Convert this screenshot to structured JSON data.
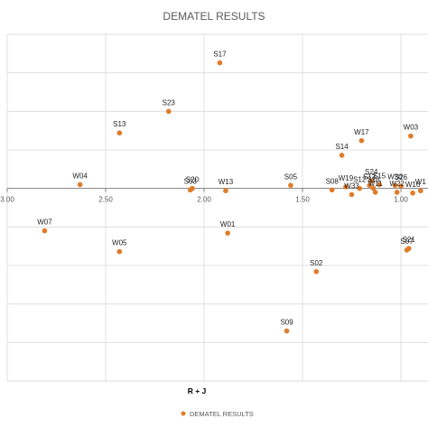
{
  "chart_data": {
    "type": "scatter",
    "title": "DEMATEL RESULTS",
    "xlabel": "R + J",
    "ylabel": "",
    "x_reversed": true,
    "xlim": [
      0.9,
      3.0
    ],
    "ylim": [
      -2.5,
      2.0
    ],
    "x_ticks": [
      "3.00",
      "2.50",
      "2.00",
      "1.50",
      "1.00"
    ],
    "grid": true,
    "legend_position": "bottom",
    "series": [
      {
        "name": "DEMATEL RESULTS",
        "color": "#E07B29",
        "points": [
          {
            "label": "S17",
            "x": 1.92,
            "y": 1.63
          },
          {
            "label": "S23",
            "x": 2.18,
            "y": 1.0
          },
          {
            "label": "S13",
            "x": 2.43,
            "y": 0.72
          },
          {
            "label": "W17",
            "x": 1.2,
            "y": 0.62
          },
          {
            "label": "W03",
            "x": 0.95,
            "y": 0.68
          },
          {
            "label": "S14",
            "x": 1.3,
            "y": 0.43
          },
          {
            "label": "W04",
            "x": 2.63,
            "y": 0.05
          },
          {
            "label": "S20",
            "x": 2.06,
            "y": 0.0
          },
          {
            "label": "S03",
            "x": 2.07,
            "y": -0.02
          },
          {
            "label": "W13",
            "x": 1.89,
            "y": -0.03
          },
          {
            "label": "S05",
            "x": 1.56,
            "y": 0.04
          },
          {
            "label": "S08",
            "x": 1.35,
            "y": -0.02
          },
          {
            "label": "W19",
            "x": 1.28,
            "y": 0.02
          },
          {
            "label": "W33",
            "x": 1.25,
            "y": -0.08
          },
          {
            "label": "S12",
            "x": 1.21,
            "y": 0.0
          },
          {
            "label": "S24",
            "x": 1.15,
            "y": 0.1
          },
          {
            "label": "S13",
            "x": 1.16,
            "y": 0.04
          },
          {
            "label": "S16",
            "x": 1.14,
            "y": 0.0
          },
          {
            "label": "S15",
            "x": 1.11,
            "y": 0.05
          },
          {
            "label": "W11",
            "x": 1.13,
            "y": -0.05
          },
          {
            "label": "W30",
            "x": 1.03,
            "y": 0.04
          },
          {
            "label": "S26",
            "x": 1.0,
            "y": 0.03
          },
          {
            "label": "W22",
            "x": 1.02,
            "y": -0.05
          },
          {
            "label": "W16",
            "x": 0.94,
            "y": -0.06
          },
          {
            "label": "W1",
            "x": 0.9,
            "y": -0.03
          },
          {
            "label": "W07",
            "x": 2.81,
            "y": -0.55
          },
          {
            "label": "W05",
            "x": 2.43,
            "y": -0.82
          },
          {
            "label": "W01",
            "x": 1.88,
            "y": -0.58
          },
          {
            "label": "S02",
            "x": 1.43,
            "y": -1.08
          },
          {
            "label": "S07",
            "x": 0.97,
            "y": -0.8
          },
          {
            "label": "S21",
            "x": 0.96,
            "y": -0.78
          },
          {
            "label": "S09",
            "x": 1.58,
            "y": -1.85
          }
        ]
      }
    ]
  }
}
